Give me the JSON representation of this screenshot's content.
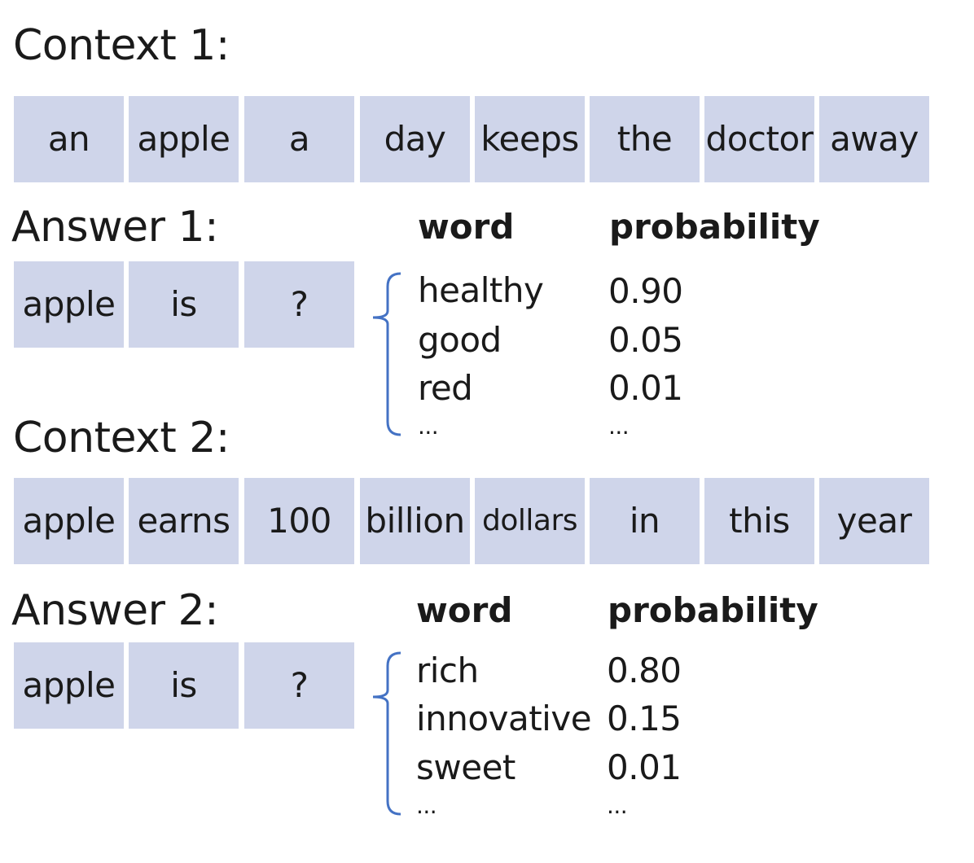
{
  "context1": {
    "heading": "Context 1:",
    "tokens": [
      "an",
      "apple",
      "a",
      "day",
      "keeps",
      "the",
      "doctor",
      "away"
    ]
  },
  "answer1": {
    "heading": "Answer 1:",
    "tokens": [
      "apple",
      "is",
      "?"
    ],
    "word_header": "word",
    "prob_header": "probability",
    "candidates": [
      {
        "word": "healthy",
        "prob": "0.90"
      },
      {
        "word": "good",
        "prob": "0.05"
      },
      {
        "word": "red",
        "prob": "0.01"
      },
      {
        "word": "...",
        "prob": "..."
      }
    ]
  },
  "context2": {
    "heading": "Context 2:",
    "tokens": [
      "apple",
      "earns",
      "100",
      "billion",
      "dollars",
      "in",
      "this",
      "year"
    ]
  },
  "answer2": {
    "heading": "Answer 2:",
    "tokens": [
      "apple",
      "is",
      "?"
    ],
    "word_header": "word",
    "prob_header": "probability",
    "candidates": [
      {
        "word": "rich",
        "prob": "0.80"
      },
      {
        "word": "innovative",
        "prob": "0.15"
      },
      {
        "word": "sweet",
        "prob": "0.01"
      },
      {
        "word": "...",
        "prob": "..."
      }
    ]
  },
  "colors": {
    "token_fill": "#cfd5ea",
    "brace": "#4472c4",
    "text": "#1a1a1a"
  }
}
